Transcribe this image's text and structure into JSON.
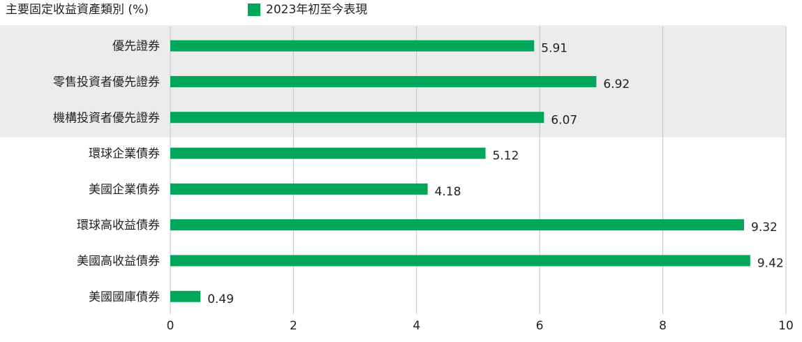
{
  "chart_data": {
    "type": "bar",
    "orientation": "horizontal",
    "title": "主要固定收益資產類別 (%)",
    "categories": [
      "優先證券",
      "零售投資者優先證券",
      "機構投資者優先證券",
      "環球企業債券",
      "美國企業債券",
      "環球高收益債券",
      "美國高收益債券",
      "美國國庫債券"
    ],
    "series": [
      {
        "name": "2023年初至今表現",
        "values": [
          5.91,
          6.92,
          6.07,
          5.12,
          4.18,
          9.32,
          9.42,
          0.49
        ]
      }
    ],
    "data_labels": [
      "5.91",
      "6.92",
      "6.07",
      "5.12",
      "4.18",
      "9.32",
      "9.42",
      "0.49"
    ],
    "xlim": [
      0,
      10
    ],
    "x_ticks": [
      0,
      2,
      4,
      6,
      8,
      10
    ],
    "x_tick_labels": [
      "0",
      "2",
      "4",
      "6",
      "8",
      "10"
    ],
    "grid": "vertical",
    "highlighted_categories": [
      "優先證券",
      "零售投資者優先證券",
      "機構投資者優先證券"
    ],
    "legend_position": "top",
    "colors": {
      "bar": "#00a65a",
      "highlight_band": "#ececec",
      "grid": "#c3c3c3",
      "text": "#222222"
    }
  }
}
